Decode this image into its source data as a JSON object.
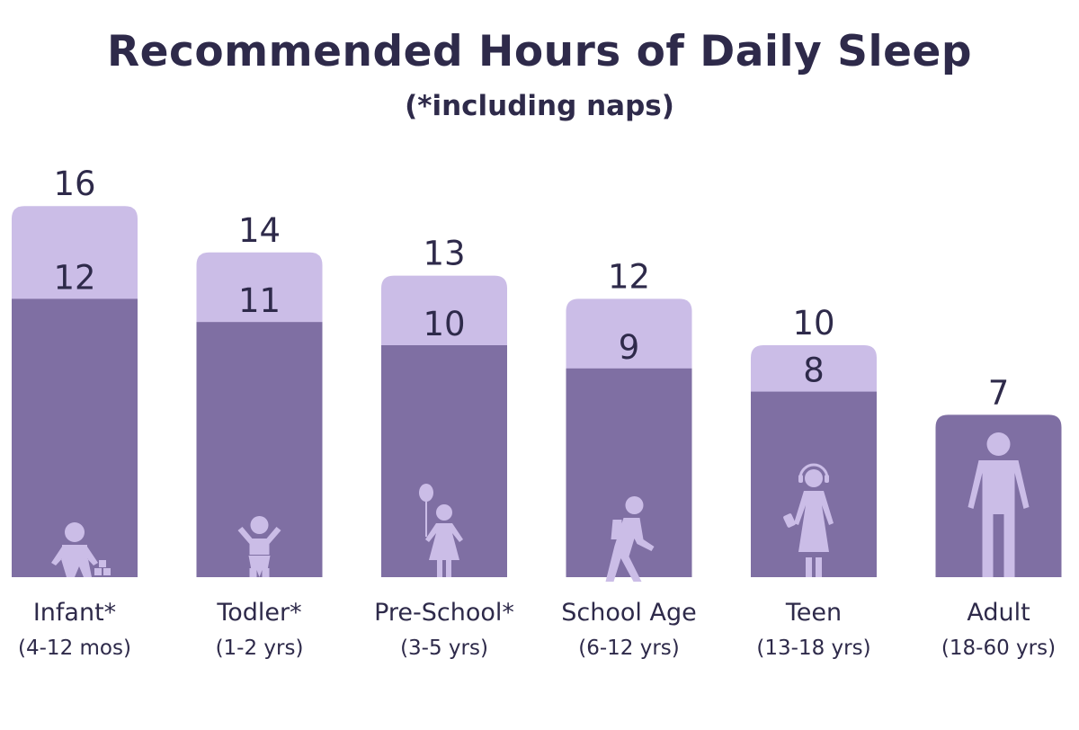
{
  "colors": {
    "min_range": "#7f6fa3",
    "max_range": "#cbbde7",
    "icon": "#cbbde7",
    "text": "#2e2a4a"
  },
  "chart_data": {
    "type": "bar",
    "title": "Recommended Hours of Daily Sleep",
    "subtitle": "(*including naps)",
    "categories": [
      "Infant*",
      "Todler*",
      "Pre-School*",
      "School Age",
      "Teen",
      "Adult"
    ],
    "category_sublabels": [
      "(4-12 mos)",
      "(1-2 yrs)",
      "(3-5 yrs)",
      "(6-12 yrs)",
      "(13-18 yrs)",
      "(18-60 yrs)"
    ],
    "series": [
      {
        "values": [
          12,
          11,
          10,
          9,
          8,
          7
        ]
      },
      {
        "values": [
          16,
          14,
          13,
          12,
          10,
          7
        ]
      }
    ],
    "ylim": [
      0,
      16
    ],
    "grid": false,
    "icons": [
      "baby-icon",
      "toddler-icon",
      "child-with-balloon-icon",
      "walking-student-icon",
      "teen-with-headphones-icon",
      "adult-icon"
    ]
  }
}
